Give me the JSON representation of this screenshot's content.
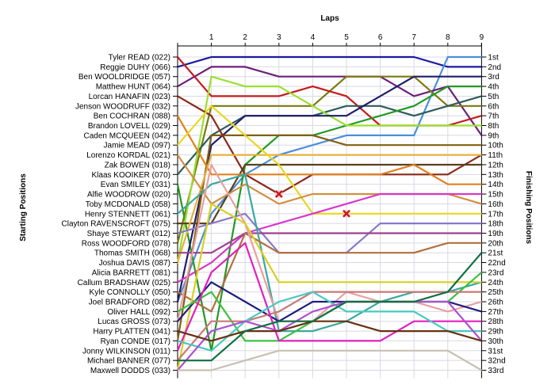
{
  "chart_data": {
    "type": "line",
    "title": "Laps",
    "xlabel": "Laps",
    "ylabel_left": "Starting Positions",
    "ylabel_right": "Finishing Positions",
    "x": [
      0,
      1,
      2,
      3,
      4,
      5,
      6,
      7,
      8,
      9
    ],
    "x_tick_labels": [
      "1",
      "2",
      "3",
      "4",
      "5",
      "6",
      "7",
      "8",
      "9"
    ],
    "ylim": [
      1,
      33
    ],
    "grid": true,
    "starting_labels": [
      "Tyler READ (022)",
      "Reggie DUHY (066)",
      "Ben WOOLDRIDGE (057)",
      "Matthew HUNT (064)",
      "Lorcan HANAFIN (023)",
      "Jenson WOODRUFF (032)",
      "Ben COCHRAN (088)",
      "Brandon LOVELL (029)",
      "Caden MCQUEEN (042)",
      "Jamie MEAD (097)",
      "Lorenzo KORDAL (021)",
      "Zak BOWEN (018)",
      "Klaas KOOIKER (070)",
      "Evan SMILEY (031)",
      "Alfie WOODROW (020)",
      "Toby MCDONALD (058)",
      "Henry STENNETT (061)",
      "Clayton RAVENSCROFT (075)",
      "Shaye STEWART (012)",
      "Ross WOODFORD (078)",
      "Thomas SMITH (068)",
      "Joshua DAVIS (087)",
      "Alicia BARRETT (081)",
      "Callum BRADSHAW (025)",
      "Kyle CONNOLLY (050)",
      "Joel BRADFORD (082)",
      "Oliver HALL (092)",
      "Lucas GROSS (073)",
      "Harry PLATTEN (041)",
      "Ryan CONDE (017)",
      "Jonny WILKINSON (011)",
      "Michael BANNER (077)",
      "Maxwell DODDS (033)"
    ],
    "finishing_labels": [
      "1st",
      "2nd",
      "3rd",
      "4th",
      "5th",
      "6th",
      "7th",
      "8th",
      "9th",
      "10th",
      "11th",
      "12th",
      "13th",
      "14th",
      "15th",
      "16th",
      "17th",
      "18th",
      "19th",
      "20th",
      "21st",
      "22nd",
      "23rd",
      "24th",
      "25th",
      "26th",
      "27th",
      "28th",
      "29th",
      "30th",
      "31st",
      "32nd",
      "33rd"
    ],
    "series": [
      {
        "color": "#1a1aa0",
        "values": [
          2,
          1,
          1,
          1,
          1,
          1,
          1,
          1,
          2,
          2
        ]
      },
      {
        "color": "#4a90d9",
        "values": [
          26,
          17,
          13,
          11,
          10,
          9,
          9,
          9,
          1,
          1
        ]
      },
      {
        "color": "#6d1f7a",
        "values": [
          4,
          2,
          2,
          3,
          3,
          3,
          3,
          5,
          4,
          9
        ]
      },
      {
        "color": "#7a7a10",
        "values": [
          20,
          6,
          6,
          6,
          6,
          3,
          3,
          3,
          6,
          6
        ]
      },
      {
        "color": "#c41c1c",
        "values": [
          1,
          5,
          5,
          5,
          4,
          5,
          8,
          8,
          8,
          7
        ]
      },
      {
        "color": "#2e5c5c",
        "values": [
          13,
          9,
          7,
          7,
          7,
          6,
          6,
          7,
          6,
          5
        ]
      },
      {
        "color": "#229a22",
        "values": [
          14,
          31,
          12,
          9,
          9,
          8,
          7,
          6,
          4,
          4
        ]
      },
      {
        "color": "#9ae030",
        "values": [
          22,
          3,
          4,
          4,
          6,
          8,
          8,
          8,
          8,
          8
        ]
      },
      {
        "color": "#1e1e68",
        "values": [
          26,
          10,
          7,
          7,
          7,
          7,
          5,
          3,
          3,
          3
        ]
      },
      {
        "color": "#806010",
        "values": [
          30,
          9,
          9,
          9,
          9,
          10,
          10,
          10,
          10,
          10
        ]
      },
      {
        "color": "#8a2a1a",
        "values": [
          5,
          7,
          13,
          15,
          13,
          13,
          13,
          13,
          13,
          11
        ]
      },
      {
        "color": "#5a4020",
        "values": [
          18,
          18,
          12,
          12,
          12,
          12,
          12,
          12,
          12,
          12
        ]
      },
      {
        "color": "#e08020",
        "values": [
          7,
          13,
          13,
          13,
          13,
          13,
          13,
          12,
          14,
          14
        ]
      },
      {
        "color": "#e9b040",
        "values": [
          22,
          11,
          11,
          11,
          11,
          11,
          11,
          11,
          11,
          11
        ]
      },
      {
        "color": "#e8d820",
        "values": [
          10,
          6,
          9,
          12,
          17,
          17,
          17,
          17,
          17,
          17
        ]
      },
      {
        "color": "#d09040",
        "values": [
          11,
          16,
          14,
          16,
          15,
          15,
          15,
          15,
          15,
          16
        ]
      },
      {
        "color": "#d838c8",
        "values": [
          24,
          22,
          19,
          18,
          17,
          16,
          15,
          15,
          15,
          15
        ]
      },
      {
        "color": "#8878c8",
        "values": [
          19,
          18,
          17,
          21,
          21,
          21,
          18,
          18,
          18,
          18
        ]
      },
      {
        "color": "#a04090",
        "values": [
          21,
          21,
          19,
          19,
          19,
          19,
          19,
          19,
          19,
          19
        ]
      },
      {
        "color": "#3aa8a0",
        "values": [
          17,
          14,
          13,
          29,
          29,
          28,
          26,
          25,
          25,
          24
        ]
      },
      {
        "color": "#b07040",
        "values": [
          25,
          27,
          19,
          21,
          21,
          21,
          21,
          21,
          20,
          20
        ]
      },
      {
        "color": "#e8a0a0",
        "values": [
          28,
          12,
          18,
          28,
          28,
          25,
          26,
          26,
          27,
          26
        ]
      },
      {
        "color": "#d8d020",
        "values": [
          33,
          16,
          18,
          24,
          24,
          24,
          24,
          24,
          24,
          24
        ]
      },
      {
        "color": "#1e1e80",
        "values": [
          28,
          24,
          26,
          28,
          26,
          26,
          26,
          26,
          26,
          27
        ]
      },
      {
        "color": "#40c040",
        "values": [
          27,
          25,
          30,
          30,
          28,
          26,
          26,
          26,
          26,
          23
        ]
      },
      {
        "color": "#c87878",
        "values": [
          32,
          28,
          28,
          27,
          25,
          25,
          25,
          25,
          25,
          25
        ]
      },
      {
        "color": "#e020c0",
        "values": [
          31,
          23,
          20,
          30,
          30,
          30,
          30,
          28,
          28,
          28
        ]
      },
      {
        "color": "#48c8c0",
        "values": [
          30,
          31,
          28,
          26,
          25,
          27,
          27,
          27,
          29,
          29
        ]
      },
      {
        "color": "#b050d0",
        "values": [
          33,
          29,
          28,
          29,
          27,
          26,
          26,
          26,
          26,
          30
        ]
      },
      {
        "color": "#683010",
        "values": [
          29,
          30,
          29,
          29,
          28,
          28,
          29,
          29,
          29,
          30
        ]
      },
      {
        "color": "#107040",
        "values": [
          32,
          32,
          29,
          28,
          28,
          26,
          26,
          26,
          25,
          21
        ]
      },
      {
        "color": "#c8c0b0",
        "values": [
          33,
          33,
          32,
          31,
          31,
          31,
          31,
          31,
          31,
          33
        ]
      }
    ],
    "retirements": [
      {
        "lap": 3,
        "position": 15,
        "color": "#c41c1c"
      },
      {
        "lap": 5,
        "position": 17,
        "color": "#c41c1c"
      }
    ]
  }
}
